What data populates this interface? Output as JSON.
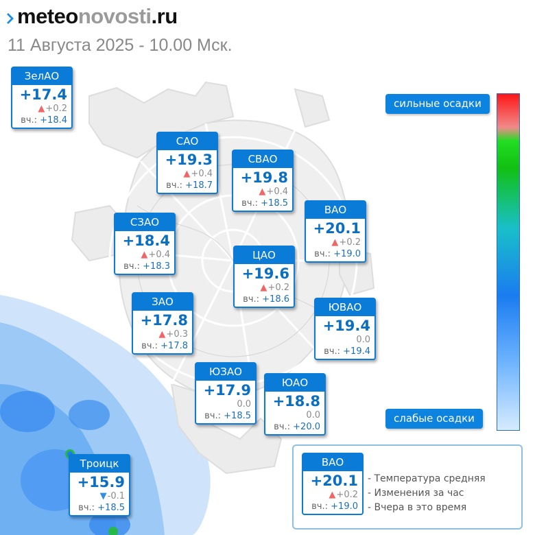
{
  "logo": {
    "part1": "meteo",
    "part2": "novosti",
    "part3": ".ru"
  },
  "subtitle": "11 Августа 2025 - 10.00 Мск.",
  "scale": {
    "top_label": "сильные осадки",
    "bottom_label": "слабые осадки"
  },
  "yesterday_label": "вч.:",
  "districts": [
    {
      "name": "ЗелАО",
      "temp": "+17.4",
      "delta": "+0.2",
      "trend": "up",
      "yesterday": "+18.4"
    },
    {
      "name": "САО",
      "temp": "+19.3",
      "delta": "+0.4",
      "trend": "up",
      "yesterday": "+18.7"
    },
    {
      "name": "СВАО",
      "temp": "+19.8",
      "delta": "+0.4",
      "trend": "up",
      "yesterday": "+18.5"
    },
    {
      "name": "ВАО",
      "temp": "+20.1",
      "delta": "+0.2",
      "trend": "up",
      "yesterday": "+19.0"
    },
    {
      "name": "СЗАО",
      "temp": "+18.4",
      "delta": "+0.4",
      "trend": "up",
      "yesterday": "+18.3"
    },
    {
      "name": "ЦАО",
      "temp": "+19.6",
      "delta": "+0.2",
      "trend": "up",
      "yesterday": "+18.6"
    },
    {
      "name": "ЗАО",
      "temp": "+17.8",
      "delta": "+0.3",
      "trend": "up",
      "yesterday": "+17.8"
    },
    {
      "name": "ЮВАО",
      "temp": "+19.4",
      "delta": "0.0",
      "trend": "none",
      "yesterday": "+19.4"
    },
    {
      "name": "ЮЗАО",
      "temp": "+17.9",
      "delta": "0.0",
      "trend": "none",
      "yesterday": "+18.5"
    },
    {
      "name": "ЮАО",
      "temp": "+18.8",
      "delta": "0.0",
      "trend": "none",
      "yesterday": "+20.0"
    },
    {
      "name": "Троицк",
      "temp": "+15.9",
      "delta": "-0.1",
      "trend": "down",
      "yesterday": "+18.5"
    }
  ],
  "legend": {
    "sample": {
      "name": "ВАО",
      "temp": "+20.1",
      "delta": "+0.2",
      "trend": "up",
      "yesterday": "+19.0"
    },
    "lines": [
      "- Температура средняя",
      "- Изменения за час",
      "- Вчера в это время"
    ]
  },
  "colors": {
    "card_header": "#0a7bd6",
    "temp_text": "#0a6fc2",
    "trend_up": "#f06666",
    "trend_down": "#2f8fe0",
    "precip_light": "#d6ebff",
    "precip_heavy": "#ff1616"
  },
  "icons": {
    "trend_up": "▲",
    "trend_down": "▼"
  }
}
